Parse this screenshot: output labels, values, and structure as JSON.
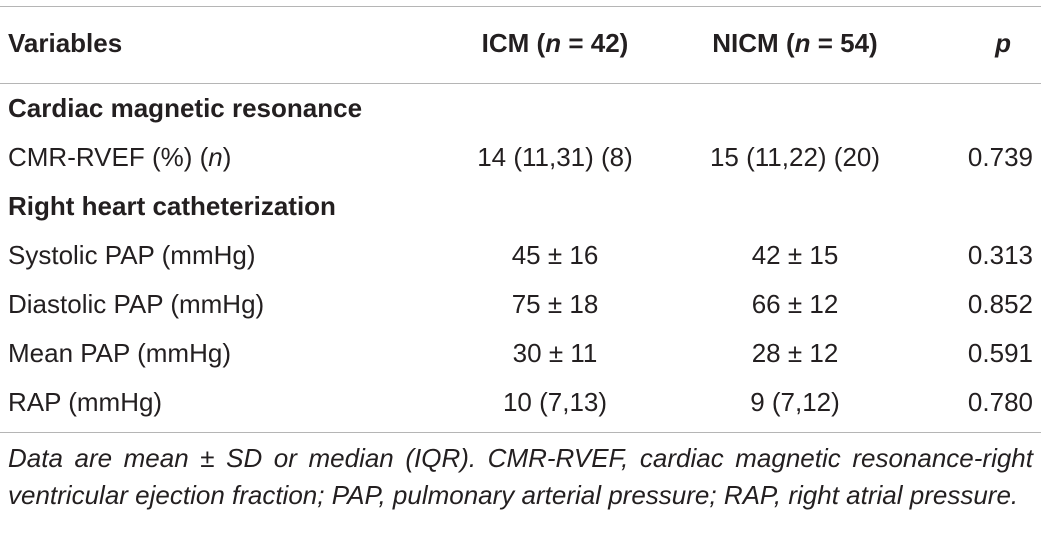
{
  "table": {
    "headers": {
      "variables": "Variables",
      "icm": "ICM (n = 42)",
      "icm_prefix": "ICM (",
      "icm_n": "n",
      "icm_suffix": " = 42)",
      "nicm": "NICM (n = 54)",
      "nicm_prefix": "NICM (",
      "nicm_n": "n",
      "nicm_suffix": " = 54)",
      "p": "p"
    },
    "sections": [
      {
        "title": "Cardiac magnetic resonance",
        "rows": [
          {
            "label": "CMR-RVEF (%) (n)",
            "label_prefix": "CMR-RVEF (%) (",
            "label_n": "n",
            "label_suffix": ")",
            "icm": "14 (11,31) (8)",
            "nicm": "15 (11,22) (20)",
            "p": "0.739"
          }
        ]
      },
      {
        "title": "Right heart catheterization",
        "rows": [
          {
            "label": "Systolic PAP (mmHg)",
            "icm": "45 ± 16",
            "nicm": "42 ± 15",
            "p": "0.313"
          },
          {
            "label": "Diastolic PAP (mmHg)",
            "icm": "75 ± 18",
            "nicm": "66 ± 12",
            "p": "0.852"
          },
          {
            "label": "Mean PAP (mmHg)",
            "icm": "30 ± 11",
            "nicm": "28 ± 12",
            "p": "0.591"
          },
          {
            "label": "RAP (mmHg)",
            "icm": "10 (7,13)",
            "nicm": "9 (7,12)",
            "p": "0.780"
          }
        ]
      }
    ],
    "footnote": "Data are mean ± SD or median (IQR). CMR-RVEF, cardiac magnetic resonance-right ventricular ejection fraction; PAP, pulmonary arterial pressure; RAP, right atrial pressure."
  }
}
